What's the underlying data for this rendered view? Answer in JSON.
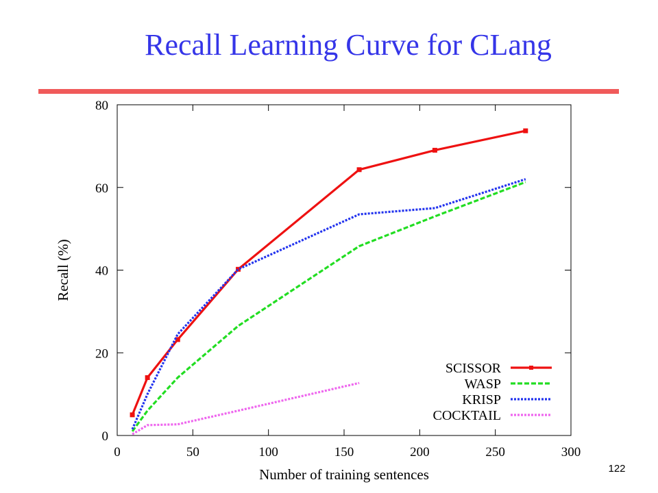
{
  "slide": {
    "title": "Recall Learning Curve for CLang",
    "number": "122"
  },
  "chart_data": {
    "type": "line",
    "title": "",
    "xlabel": "Number of training sentences",
    "ylabel": "Recall (%)",
    "xlim": [
      0,
      300
    ],
    "ylim": [
      0,
      80
    ],
    "xticks": [
      0,
      50,
      100,
      150,
      200,
      250,
      300
    ],
    "yticks": [
      0,
      20,
      40,
      60,
      80
    ],
    "grid": false,
    "legend_position": "bottom-right",
    "series": [
      {
        "name": "SCISSOR",
        "color": "#ee1111",
        "style": "solid-with-markers",
        "x": [
          10,
          20,
          40,
          80,
          160,
          210,
          270
        ],
        "y": [
          5.0,
          14.0,
          23.2,
          40.2,
          64.3,
          69.0,
          73.7
        ]
      },
      {
        "name": "WASP",
        "color": "#22dd22",
        "style": "dashed",
        "x": [
          10,
          20,
          40,
          80,
          160,
          210,
          270
        ],
        "y": [
          1.0,
          6.0,
          14.0,
          26.5,
          45.8,
          53.0,
          61.3
        ]
      },
      {
        "name": "KRISP",
        "color": "#2233ee",
        "style": "dotted",
        "x": [
          10,
          20,
          40,
          80,
          160,
          210,
          270
        ],
        "y": [
          1.5,
          10.0,
          24.5,
          40.2,
          53.5,
          55.0,
          62.0
        ]
      },
      {
        "name": "COCKTAIL",
        "color": "#ee66ee",
        "style": "dotted",
        "x": [
          10,
          20,
          40,
          80,
          160
        ],
        "y": [
          0.3,
          2.5,
          2.7,
          6.0,
          12.7
        ]
      }
    ]
  }
}
